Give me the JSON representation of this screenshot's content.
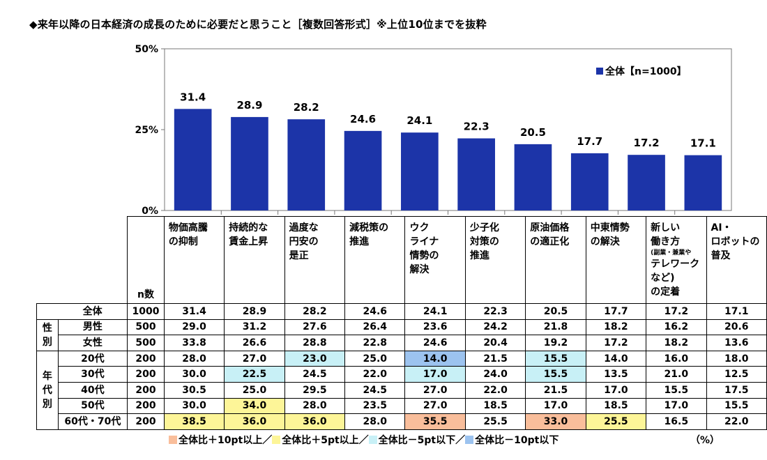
{
  "title": "◆来年以降の日本経済の成長のために必要だと思うこと［複数回答形式］※上位10位までを抜粋",
  "colors": {
    "bar": "#1c34a8",
    "plus10": "#f9be9b",
    "plus5": "#fdf598",
    "minus5": "#c8f0f6",
    "minus10": "#9cc3ef"
  },
  "chart_data": {
    "type": "bar",
    "categories": [
      "物価高騰の抑制",
      "持続的な賃金上昇",
      "過度な円安の是正",
      "減税策の推進",
      "ウクライナ情勢の解決",
      "少子化対策の推進",
      "原油価格の適正化",
      "中東情勢の解決",
      "新しい働き方（副業・兼業やテレワークなど）の定着",
      "AI・ロボットの普及"
    ],
    "series": [
      {
        "name": "全体【n=1000】",
        "values": [
          31.4,
          28.9,
          28.2,
          24.6,
          24.1,
          22.3,
          20.5,
          17.7,
          17.2,
          17.1
        ]
      }
    ],
    "ylim": [
      0,
      50
    ],
    "yticks": [
      "0%",
      "25%",
      "50%"
    ],
    "ytick_values": [
      0,
      25,
      50
    ],
    "legend": "top-right"
  },
  "table": {
    "headers": [
      [
        "物価高騰",
        "の抑制"
      ],
      [
        "持続的な",
        "賃金上昇"
      ],
      [
        "過度な",
        "円安の",
        "是正"
      ],
      [
        "減税策の",
        "推進"
      ],
      [
        "ウク",
        "ライナ",
        "情勢の",
        "解決"
      ],
      [
        "少子化",
        "対策の",
        "推進"
      ],
      [
        "原油価格",
        "の適正化"
      ],
      [
        "中東情勢",
        "の解決"
      ],
      [
        "新しい",
        "働き方",
        "(副業・兼業や",
        "テレワークなど)",
        "の定着"
      ],
      [
        "AI・",
        "ロボットの",
        "普及"
      ]
    ],
    "n_label": "n数",
    "groups": [
      {
        "label": "",
        "rows": [
          {
            "label": "全体",
            "n": "1000",
            "values": [
              "31.4",
              "28.9",
              "28.2",
              "24.6",
              "24.1",
              "22.3",
              "20.5",
              "17.7",
              "17.2",
              "17.1"
            ],
            "hl": [
              "",
              "",
              "",
              "",
              "",
              "",
              "",
              "",
              "",
              ""
            ]
          }
        ]
      },
      {
        "label": "性別",
        "rows": [
          {
            "label": "男性",
            "n": "500",
            "values": [
              "29.0",
              "31.2",
              "27.6",
              "26.4",
              "23.6",
              "24.2",
              "21.8",
              "18.2",
              "16.2",
              "20.6"
            ],
            "hl": [
              "",
              "",
              "",
              "",
              "",
              "",
              "",
              "",
              "",
              ""
            ]
          },
          {
            "label": "女性",
            "n": "500",
            "values": [
              "33.8",
              "26.6",
              "28.8",
              "22.8",
              "24.6",
              "20.4",
              "19.2",
              "17.2",
              "18.2",
              "13.6"
            ],
            "hl": [
              "",
              "",
              "",
              "",
              "",
              "",
              "",
              "",
              "",
              ""
            ]
          }
        ]
      },
      {
        "label": "年代別",
        "rows": [
          {
            "label": "20代",
            "n": "200",
            "values": [
              "28.0",
              "27.0",
              "23.0",
              "25.0",
              "14.0",
              "21.5",
              "15.5",
              "14.0",
              "16.0",
              "18.0"
            ],
            "hl": [
              "",
              "",
              "lm5",
              "",
              "lm10",
              "",
              "lm5",
              "",
              "",
              ""
            ]
          },
          {
            "label": "30代",
            "n": "200",
            "values": [
              "30.0",
              "22.5",
              "24.5",
              "22.0",
              "17.0",
              "24.0",
              "15.5",
              "13.5",
              "21.0",
              "12.5"
            ],
            "hl": [
              "",
              "lm5",
              "",
              "",
              "lm5",
              "",
              "lm5",
              "",
              "",
              ""
            ]
          },
          {
            "label": "40代",
            "n": "200",
            "values": [
              "30.5",
              "25.0",
              "29.5",
              "24.5",
              "27.0",
              "22.0",
              "21.5",
              "17.0",
              "15.5",
              "17.5"
            ],
            "hl": [
              "",
              "",
              "",
              "",
              "",
              "",
              "",
              "",
              "",
              ""
            ]
          },
          {
            "label": "50代",
            "n": "200",
            "values": [
              "30.0",
              "34.0",
              "28.0",
              "23.5",
              "27.0",
              "18.5",
              "17.0",
              "18.5",
              "17.0",
              "15.5"
            ],
            "hl": [
              "",
              "lp5",
              "",
              "",
              "",
              "",
              "",
              "",
              "",
              ""
            ]
          },
          {
            "label": "60代・70代",
            "n": "200",
            "values": [
              "38.5",
              "36.0",
              "36.0",
              "28.0",
              "35.5",
              "25.5",
              "33.0",
              "25.5",
              "16.5",
              "22.0"
            ],
            "hl": [
              "lp5",
              "lp5",
              "lp5",
              "",
              "lp10",
              "",
              "lp10",
              "lp5",
              "",
              ""
            ]
          }
        ]
      }
    ]
  },
  "legend_items": [
    "全体比＋10pt以上／",
    "全体比＋5pt以上／",
    "全体比－5pt以下／",
    "全体比－10pt以下"
  ],
  "unit": "（%）"
}
